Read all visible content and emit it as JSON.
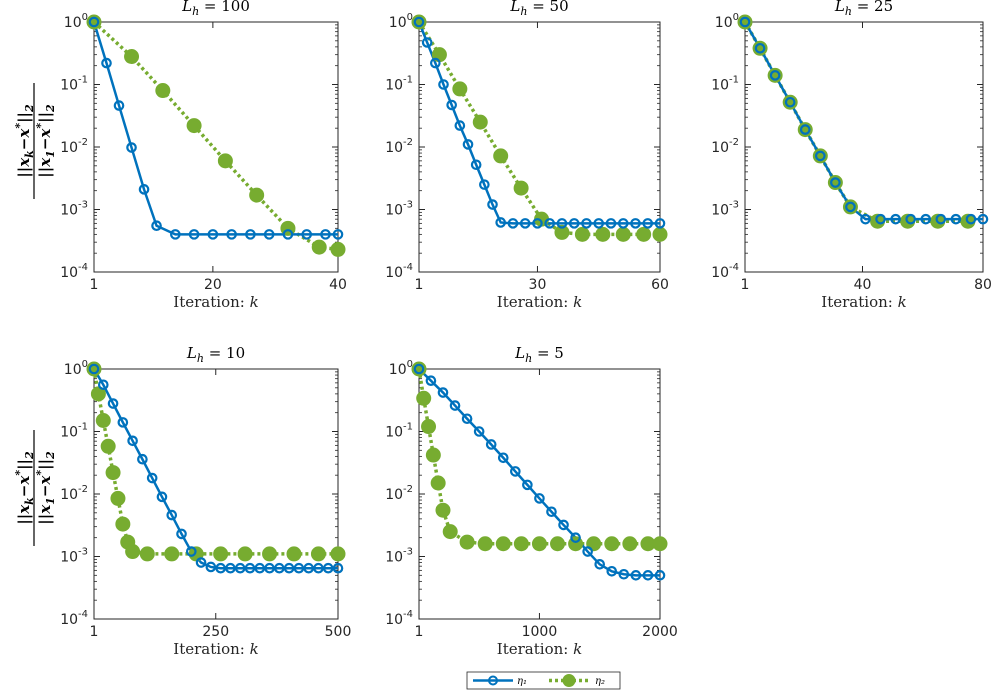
{
  "colors": {
    "eta1": "#0072BD",
    "eta2": "#77AC30",
    "axis": "#262626"
  },
  "legend": {
    "eta1": "η₁",
    "eta2": "η₂"
  },
  "chart_data": [
    {
      "type": "line",
      "title": "L_h = 100",
      "xlabel": "Iteration:  k",
      "ylabel": "||x_k − x*||₂ / ||x₁ − x*||₂",
      "yscale": "log",
      "ylim": [
        0.0001,
        1
      ],
      "xlim": [
        1,
        40
      ],
      "xticks": [
        1,
        20,
        40
      ],
      "xticklabels": [
        "1",
        "20",
        "40"
      ],
      "yticks": [
        0.0001,
        0.001,
        0.01,
        0.1,
        1
      ],
      "yticklabels": [
        [
          "10",
          "-4"
        ],
        [
          "10",
          "-3"
        ],
        [
          "10",
          "-2"
        ],
        [
          "10",
          "-1"
        ],
        [
          "10",
          "0"
        ]
      ],
      "series": [
        {
          "name": "η₁",
          "x": [
            1,
            3,
            5,
            7,
            9,
            11,
            14,
            17,
            20,
            23,
            26,
            29,
            32,
            35,
            38,
            40
          ],
          "y": [
            1,
            0.22,
            0.046,
            0.0098,
            0.0021,
            0.00055,
            0.0004,
            0.0004,
            0.0004,
            0.0004,
            0.0004,
            0.0004,
            0.0004,
            0.0004,
            0.0004,
            0.0004
          ]
        },
        {
          "name": "η₂",
          "x": [
            1,
            7,
            12,
            17,
            22,
            27,
            32,
            37,
            40
          ],
          "y": [
            1,
            0.28,
            0.08,
            0.022,
            0.006,
            0.0017,
            0.0005,
            0.00025,
            0.00023
          ]
        }
      ]
    },
    {
      "type": "line",
      "title": "L_h = 50",
      "xlabel": "Iteration:  k",
      "ylabel": "",
      "yscale": "log",
      "ylim": [
        0.0001,
        1
      ],
      "xlim": [
        1,
        60
      ],
      "xticks": [
        1,
        30,
        60
      ],
      "xticklabels": [
        "1",
        "30",
        "60"
      ],
      "yticks": [
        0.0001,
        0.001,
        0.01,
        0.1,
        1
      ],
      "yticklabels": [
        [
          "10",
          "-4"
        ],
        [
          "10",
          "-3"
        ],
        [
          "10",
          "-2"
        ],
        [
          "10",
          "-1"
        ],
        [
          "10",
          "0"
        ]
      ],
      "series": [
        {
          "name": "η₁",
          "x": [
            1,
            3,
            5,
            7,
            9,
            11,
            13,
            15,
            17,
            19,
            21,
            24,
            27,
            30,
            33,
            36,
            39,
            42,
            45,
            48,
            51,
            54,
            57,
            60
          ],
          "y": [
            1,
            0.47,
            0.22,
            0.1,
            0.047,
            0.022,
            0.011,
            0.0052,
            0.0025,
            0.0012,
            0.00062,
            0.0006,
            0.0006,
            0.0006,
            0.0006,
            0.0006,
            0.0006,
            0.0006,
            0.0006,
            0.0006,
            0.0006,
            0.0006,
            0.0006,
            0.0006
          ]
        },
        {
          "name": "η₂",
          "x": [
            1,
            6,
            11,
            16,
            21,
            26,
            31,
            36,
            41,
            46,
            51,
            56,
            60
          ],
          "y": [
            1,
            0.3,
            0.085,
            0.025,
            0.0072,
            0.0022,
            0.0007,
            0.00043,
            0.0004,
            0.0004,
            0.0004,
            0.0004,
            0.0004
          ]
        }
      ]
    },
    {
      "type": "line",
      "title": "L_h = 25",
      "xlabel": "Iteration:  k",
      "ylabel": "",
      "yscale": "log",
      "ylim": [
        0.0001,
        1
      ],
      "xlim": [
        1,
        80
      ],
      "xticks": [
        1,
        40,
        80
      ],
      "xticklabels": [
        "1",
        "40",
        "80"
      ],
      "yticks": [
        0.0001,
        0.001,
        0.01,
        0.1,
        1
      ],
      "yticklabels": [
        [
          "10",
          "-4"
        ],
        [
          "10",
          "-3"
        ],
        [
          "10",
          "-2"
        ],
        [
          "10",
          "-1"
        ],
        [
          "10",
          "0"
        ]
      ],
      "series": [
        {
          "name": "η₁",
          "x": [
            1,
            6,
            11,
            16,
            21,
            26,
            31,
            36,
            41,
            46,
            51,
            56,
            61,
            66,
            71,
            76,
            80
          ],
          "y": [
            1,
            0.38,
            0.14,
            0.052,
            0.019,
            0.0072,
            0.0027,
            0.0011,
            0.0007,
            0.0007,
            0.0007,
            0.0007,
            0.0007,
            0.0007,
            0.0007,
            0.0007,
            0.0007
          ]
        },
        {
          "name": "η₂",
          "x": [
            1,
            6,
            11,
            16,
            21,
            26,
            31,
            36,
            45,
            55,
            65,
            75
          ],
          "y": [
            1,
            0.38,
            0.14,
            0.052,
            0.019,
            0.0072,
            0.0027,
            0.0011,
            0.00065,
            0.00065,
            0.00065,
            0.00065
          ]
        }
      ]
    },
    {
      "type": "line",
      "title": "L_h = 10",
      "xlabel": "Iteration:  k",
      "ylabel": "||x_k − x*||₂ / ||x₁ − x*||₂",
      "yscale": "log",
      "ylim": [
        0.0001,
        1
      ],
      "xlim": [
        1,
        500
      ],
      "xticks": [
        1,
        250,
        500
      ],
      "xticklabels": [
        "1",
        "250",
        "500"
      ],
      "yticks": [
        0.0001,
        0.001,
        0.01,
        0.1,
        1
      ],
      "yticklabels": [
        [
          "10",
          "-4"
        ],
        [
          "10",
          "-3"
        ],
        [
          "10",
          "-2"
        ],
        [
          "10",
          "-1"
        ],
        [
          "10",
          "0"
        ]
      ],
      "series": [
        {
          "name": "η₁",
          "x": [
            1,
            20,
            40,
            60,
            80,
            100,
            120,
            140,
            160,
            180,
            200,
            220,
            240,
            260,
            280,
            300,
            320,
            340,
            360,
            380,
            400,
            420,
            440,
            460,
            480,
            500
          ],
          "y": [
            1,
            0.56,
            0.28,
            0.14,
            0.071,
            0.036,
            0.018,
            0.009,
            0.0046,
            0.0023,
            0.0012,
            0.0008,
            0.00068,
            0.00065,
            0.00065,
            0.00065,
            0.00065,
            0.00065,
            0.00065,
            0.00065,
            0.00065,
            0.00065,
            0.00065,
            0.00065,
            0.00065,
            0.00065
          ]
        },
        {
          "name": "η₂",
          "x": [
            1,
            10,
            20,
            30,
            40,
            50,
            60,
            70,
            80,
            110,
            160,
            210,
            260,
            310,
            360,
            410,
            460,
            500
          ],
          "y": [
            1,
            0.4,
            0.15,
            0.058,
            0.022,
            0.0085,
            0.0033,
            0.0017,
            0.0012,
            0.0011,
            0.0011,
            0.0011,
            0.0011,
            0.0011,
            0.0011,
            0.0011,
            0.0011,
            0.0011
          ]
        }
      ]
    },
    {
      "type": "line",
      "title": "L_h = 5",
      "xlabel": "Iteration:  k",
      "ylabel": "",
      "yscale": "log",
      "ylim": [
        0.0001,
        1
      ],
      "xlim": [
        1,
        2000
      ],
      "xticks": [
        1,
        1000,
        2000
      ],
      "xticklabels": [
        "1",
        "1000",
        "2000"
      ],
      "yticks": [
        0.0001,
        0.001,
        0.01,
        0.1,
        1
      ],
      "yticklabels": [
        [
          "10",
          "-4"
        ],
        [
          "10",
          "-3"
        ],
        [
          "10",
          "-2"
        ],
        [
          "10",
          "-1"
        ],
        [
          "10",
          "0"
        ]
      ],
      "series": [
        {
          "name": "η₁",
          "x": [
            1,
            100,
            200,
            300,
            400,
            500,
            600,
            700,
            800,
            900,
            1000,
            1100,
            1200,
            1300,
            1400,
            1500,
            1600,
            1700,
            1800,
            1900,
            2000
          ],
          "y": [
            1,
            0.65,
            0.42,
            0.26,
            0.16,
            0.1,
            0.062,
            0.038,
            0.023,
            0.014,
            0.0085,
            0.0052,
            0.0032,
            0.002,
            0.0012,
            0.00075,
            0.00058,
            0.00052,
            0.0005,
            0.0005,
            0.0005
          ]
        },
        {
          "name": "η₂",
          "x": [
            1,
            40,
            80,
            120,
            160,
            200,
            260,
            400,
            550,
            700,
            850,
            1000,
            1150,
            1300,
            1450,
            1600,
            1750,
            1900,
            2000
          ],
          "y": [
            1,
            0.34,
            0.12,
            0.042,
            0.015,
            0.0055,
            0.0025,
            0.0017,
            0.0016,
            0.0016,
            0.0016,
            0.0016,
            0.0016,
            0.0016,
            0.0016,
            0.0016,
            0.0016,
            0.0016,
            0.0016
          ]
        }
      ]
    }
  ]
}
